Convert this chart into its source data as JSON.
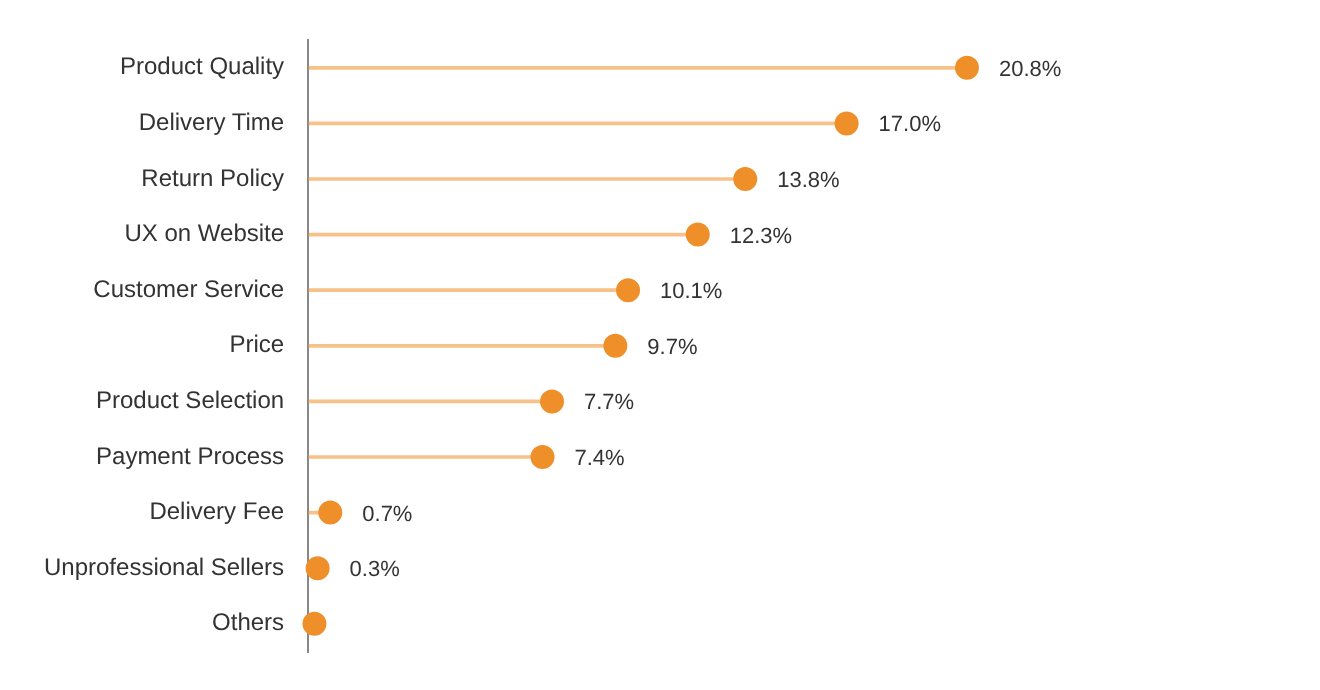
{
  "chart_data": {
    "type": "lollipop",
    "orientation": "horizontal",
    "categories": [
      "Product Quality",
      "Delivery Time",
      "Return Policy",
      "UX on Website",
      "Customer Service",
      "Price",
      "Product Selection",
      "Payment Process",
      "Delivery Fee",
      "Unprofessional Sellers",
      "Others"
    ],
    "values": [
      20.8,
      17.0,
      13.8,
      12.3,
      10.1,
      9.7,
      7.7,
      7.4,
      0.7,
      0.3,
      0.2
    ],
    "value_labels": [
      "20.8%",
      "17.0%",
      "13.8%",
      "12.3%",
      "10.1%",
      "9.7%",
      "7.7%",
      "7.4%",
      "0.7%",
      "0.3%",
      null
    ],
    "color": "#ef8f2a",
    "grid": false,
    "legend": false,
    "marker": "circle"
  }
}
